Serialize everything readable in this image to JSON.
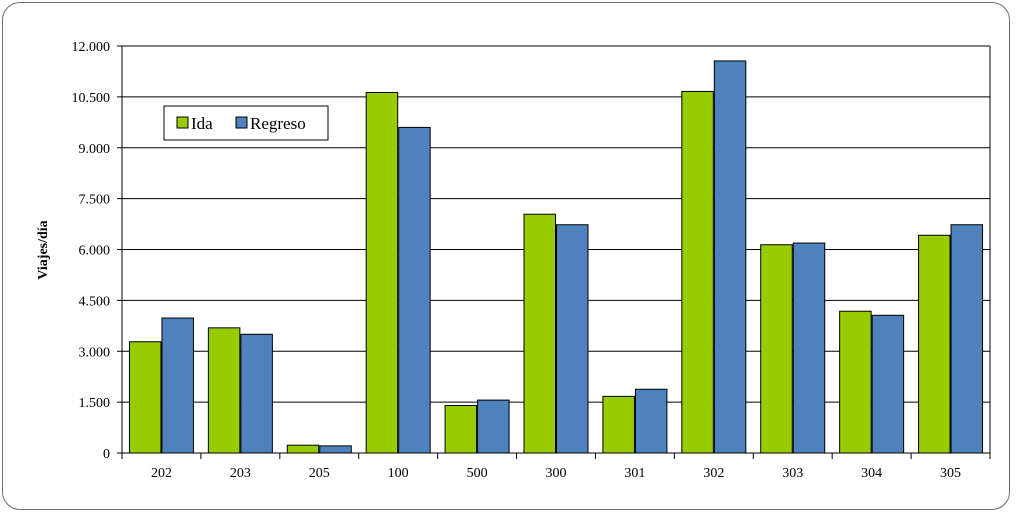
{
  "chart_data": {
    "type": "bar",
    "categories": [
      "202",
      "203",
      "205",
      "100",
      "500",
      "300",
      "301",
      "302",
      "303",
      "304",
      "305"
    ],
    "series": [
      {
        "name": "Ida",
        "color": "#99CC00",
        "values": [
          3280,
          3690,
          230,
          10630,
          1400,
          7040,
          1670,
          10660,
          6140,
          4180,
          6420
        ]
      },
      {
        "name": "Regreso",
        "color": "#4F81BD",
        "values": [
          3980,
          3500,
          210,
          9600,
          1560,
          6730,
          1880,
          11560,
          6190,
          4060,
          6730
        ]
      }
    ],
    "ylabel": "Viajes/día",
    "xlabel": "",
    "ylim": [
      0,
      12000
    ],
    "yticks": [
      {
        "value": 0,
        "label": "0"
      },
      {
        "value": 1500,
        "label": "1.500"
      },
      {
        "value": 3000,
        "label": "3.000"
      },
      {
        "value": 4500,
        "label": "4.500"
      },
      {
        "value": 6000,
        "label": "6.000"
      },
      {
        "value": 7500,
        "label": "7.500"
      },
      {
        "value": 9000,
        "label": "9.000"
      },
      {
        "value": 10500,
        "label": "10.500"
      },
      {
        "value": 12000,
        "label": "12.000"
      }
    ],
    "grid": true,
    "legend_position": "top-left"
  }
}
